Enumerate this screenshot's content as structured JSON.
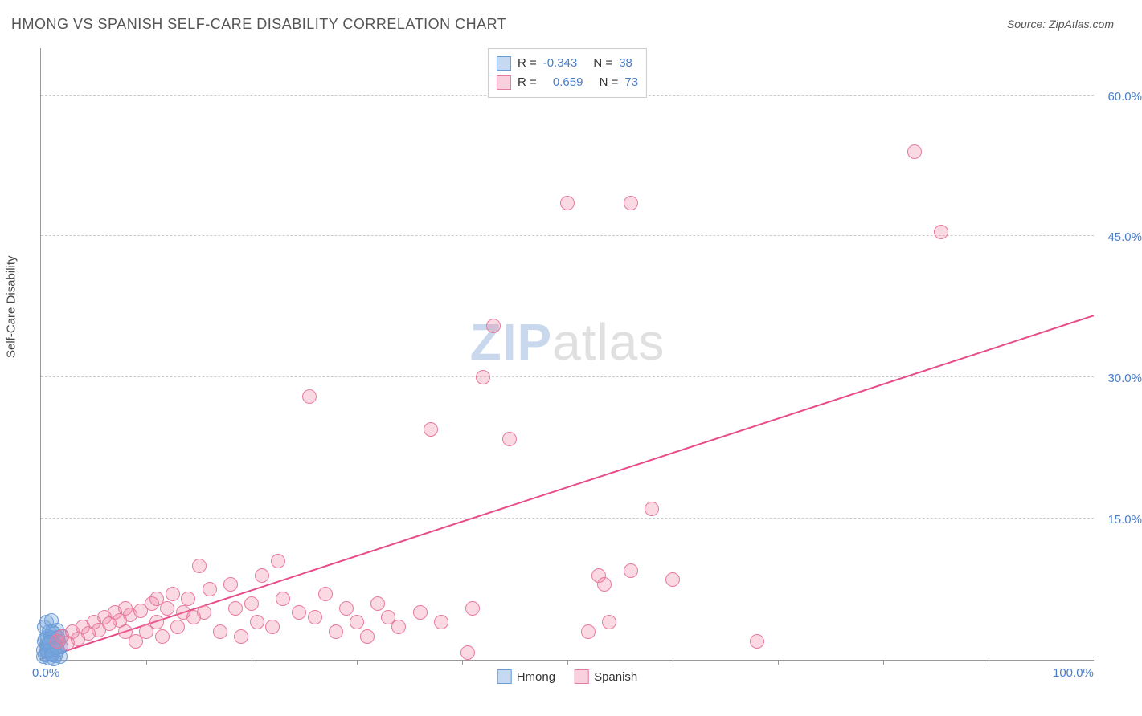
{
  "title": "HMONG VS SPANISH SELF-CARE DISABILITY CORRELATION CHART",
  "source_label": "Source: ZipAtlas.com",
  "ylabel": "Self-Care Disability",
  "watermark": {
    "bold": "ZIP",
    "light": "atlas"
  },
  "chart": {
    "type": "scatter",
    "background_color": "#ffffff",
    "grid_color": "#cccccc",
    "axis_color": "#999999",
    "label_color": "#4a7ec9",
    "xlim": [
      0,
      100
    ],
    "ylim": [
      0,
      65
    ],
    "x_tick_step": 10,
    "y_ticks": [
      15,
      30,
      45,
      60
    ],
    "x_axis_labels": [
      {
        "value": 0,
        "text": "0.0%"
      },
      {
        "value": 100,
        "text": "100.0%"
      }
    ],
    "y_axis_labels": [
      {
        "value": 15,
        "text": "15.0%"
      },
      {
        "value": 30,
        "text": "30.0%"
      },
      {
        "value": 45,
        "text": "45.0%"
      },
      {
        "value": 60,
        "text": "60.0%"
      }
    ],
    "marker_radius": 9,
    "marker_border_width": 1.5,
    "series": [
      {
        "name": "Hmong",
        "fill_color": "rgba(120,165,220,0.35)",
        "border_color": "#6a9bd8",
        "swatch_fill": "#c5d9f1",
        "swatch_border": "#6a9bd8",
        "R": "-0.343",
        "N": "38",
        "trend": null,
        "points": [
          [
            0.2,
            1.0
          ],
          [
            0.3,
            2.0
          ],
          [
            0.4,
            0.5
          ],
          [
            0.5,
            1.5
          ],
          [
            0.6,
            2.5
          ],
          [
            0.7,
            0.8
          ],
          [
            0.8,
            3.0
          ],
          [
            0.9,
            1.2
          ],
          [
            1.0,
            2.2
          ],
          [
            1.1,
            0.6
          ],
          [
            1.2,
            1.8
          ],
          [
            1.3,
            2.8
          ],
          [
            1.4,
            0.4
          ],
          [
            1.5,
            3.2
          ],
          [
            1.6,
            1.0
          ],
          [
            1.7,
            2.0
          ],
          [
            1.8,
            0.3
          ],
          [
            1.9,
            1.4
          ],
          [
            2.0,
            2.6
          ],
          [
            0.3,
            3.5
          ],
          [
            0.5,
            4.0
          ],
          [
            0.8,
            0.2
          ],
          [
            1.0,
            4.2
          ],
          [
            1.2,
            0.1
          ],
          [
            0.6,
            1.0
          ],
          [
            0.9,
            2.4
          ],
          [
            1.1,
            3.0
          ],
          [
            1.4,
            1.6
          ],
          [
            0.2,
            0.3
          ],
          [
            0.4,
            2.2
          ],
          [
            0.7,
            1.6
          ],
          [
            1.0,
            0.7
          ],
          [
            1.3,
            1.1
          ],
          [
            1.6,
            2.4
          ],
          [
            0.5,
            0.9
          ],
          [
            0.8,
            1.9
          ],
          [
            1.1,
            0.5
          ],
          [
            1.5,
            1.3
          ]
        ]
      },
      {
        "name": "Spanish",
        "fill_color": "rgba(240,130,160,0.30)",
        "border_color": "#e87aa0",
        "swatch_fill": "#f9d0dd",
        "swatch_border": "#e87aa0",
        "R": "0.659",
        "N": "73",
        "trend": {
          "x1": 0,
          "y1": 0.0,
          "x2": 100,
          "y2": 36.5,
          "color": "#e84c88",
          "width": 2
        },
        "points": [
          [
            1.5,
            2.0
          ],
          [
            2.0,
            2.5
          ],
          [
            2.5,
            1.8
          ],
          [
            3.0,
            3.0
          ],
          [
            3.5,
            2.2
          ],
          [
            4.0,
            3.5
          ],
          [
            4.5,
            2.8
          ],
          [
            5.0,
            4.0
          ],
          [
            5.5,
            3.2
          ],
          [
            6.0,
            4.5
          ],
          [
            6.5,
            3.8
          ],
          [
            7.0,
            5.0
          ],
          [
            7.5,
            4.2
          ],
          [
            8.0,
            5.5
          ],
          [
            8.5,
            4.8
          ],
          [
            9.0,
            2.0
          ],
          [
            9.5,
            5.2
          ],
          [
            10.0,
            3.0
          ],
          [
            10.5,
            6.0
          ],
          [
            11.0,
            4.0
          ],
          [
            11.5,
            2.5
          ],
          [
            12.0,
            5.5
          ],
          [
            12.5,
            7.0
          ],
          [
            13.0,
            3.5
          ],
          [
            14.0,
            6.5
          ],
          [
            14.5,
            4.5
          ],
          [
            15.0,
            10.0
          ],
          [
            15.5,
            5.0
          ],
          [
            16.0,
            7.5
          ],
          [
            17.0,
            3.0
          ],
          [
            18.0,
            8.0
          ],
          [
            18.5,
            5.5
          ],
          [
            19.0,
            2.5
          ],
          [
            20.0,
            6.0
          ],
          [
            20.5,
            4.0
          ],
          [
            21.0,
            9.0
          ],
          [
            22.0,
            3.5
          ],
          [
            22.5,
            10.5
          ],
          [
            23.0,
            6.5
          ],
          [
            24.5,
            5.0
          ],
          [
            25.5,
            28.0
          ],
          [
            26.0,
            4.5
          ],
          [
            27.0,
            7.0
          ],
          [
            28.0,
            3.0
          ],
          [
            29.0,
            5.5
          ],
          [
            30.0,
            4.0
          ],
          [
            31.0,
            2.5
          ],
          [
            32.0,
            6.0
          ],
          [
            33.0,
            4.5
          ],
          [
            34.0,
            3.5
          ],
          [
            36.0,
            5.0
          ],
          [
            37.0,
            24.5
          ],
          [
            38.0,
            4.0
          ],
          [
            40.5,
            0.8
          ],
          [
            41.0,
            5.5
          ],
          [
            42.0,
            30.0
          ],
          [
            43.0,
            35.5
          ],
          [
            44.5,
            23.5
          ],
          [
            50.0,
            48.5
          ],
          [
            52.0,
            3.0
          ],
          [
            53.0,
            9.0
          ],
          [
            53.5,
            8.0
          ],
          [
            54.0,
            4.0
          ],
          [
            56.0,
            9.5
          ],
          [
            58.0,
            16.0
          ],
          [
            60.0,
            8.5
          ],
          [
            68.0,
            2.0
          ],
          [
            56.0,
            48.5
          ],
          [
            83.0,
            54.0
          ],
          [
            85.5,
            45.5
          ],
          [
            8.0,
            3.0
          ],
          [
            11.0,
            6.5
          ],
          [
            13.5,
            5.0
          ]
        ]
      }
    ],
    "legend_top_labels": {
      "R": "R =",
      "N": "N ="
    },
    "legend_bottom": [
      "Hmong",
      "Spanish"
    ]
  }
}
